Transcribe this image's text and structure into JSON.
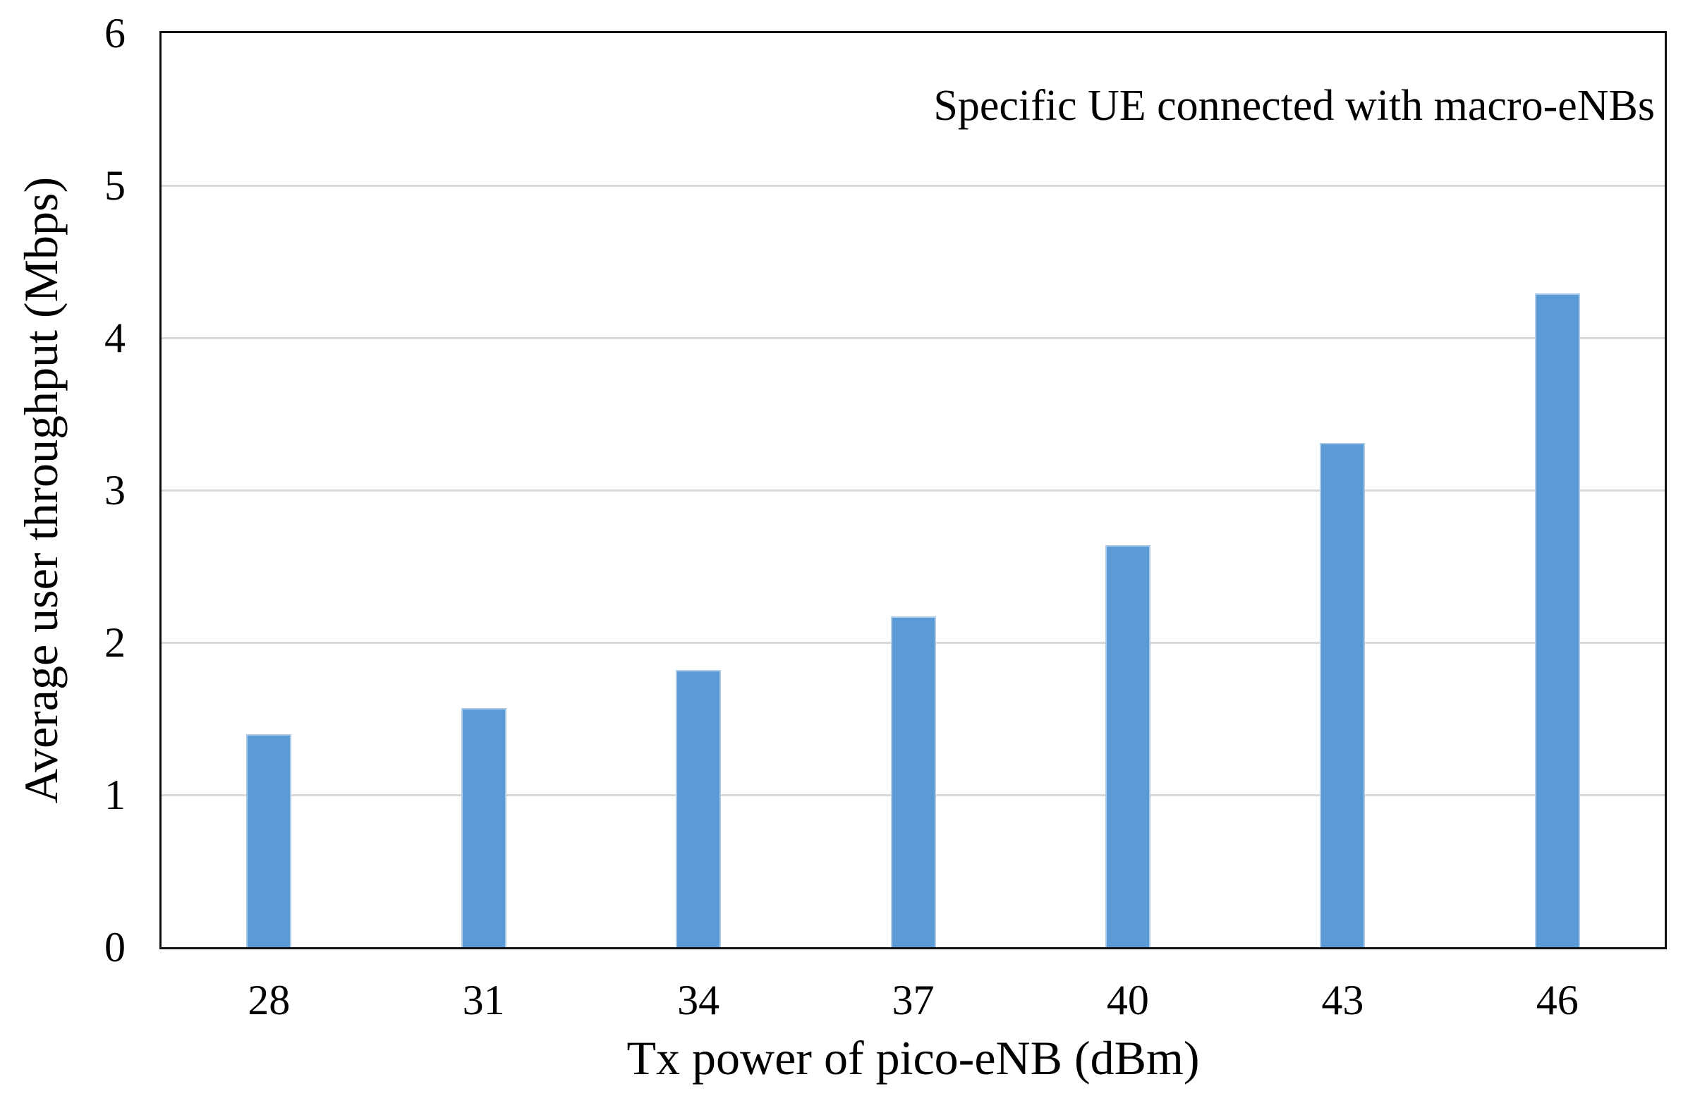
{
  "chart_data": {
    "type": "bar",
    "annotation": "Specific UE connected with macro-eNBs",
    "categories": [
      "28",
      "31",
      "34",
      "37",
      "40",
      "43",
      "46"
    ],
    "values": [
      1.4,
      1.57,
      1.82,
      2.17,
      2.64,
      3.31,
      4.29
    ],
    "xlabel": "Tx power of pico-eNB (dBm)",
    "ylabel": "Average user throughput (Mbps)",
    "ylim": [
      0,
      6
    ],
    "yticks": [
      0,
      1,
      2,
      3,
      4,
      5,
      6
    ],
    "grid": "horizontal",
    "legend": "none",
    "bar_color": "#5b9bd5",
    "gridline_color": "#d9d9d9",
    "axis_color": "#111111"
  }
}
